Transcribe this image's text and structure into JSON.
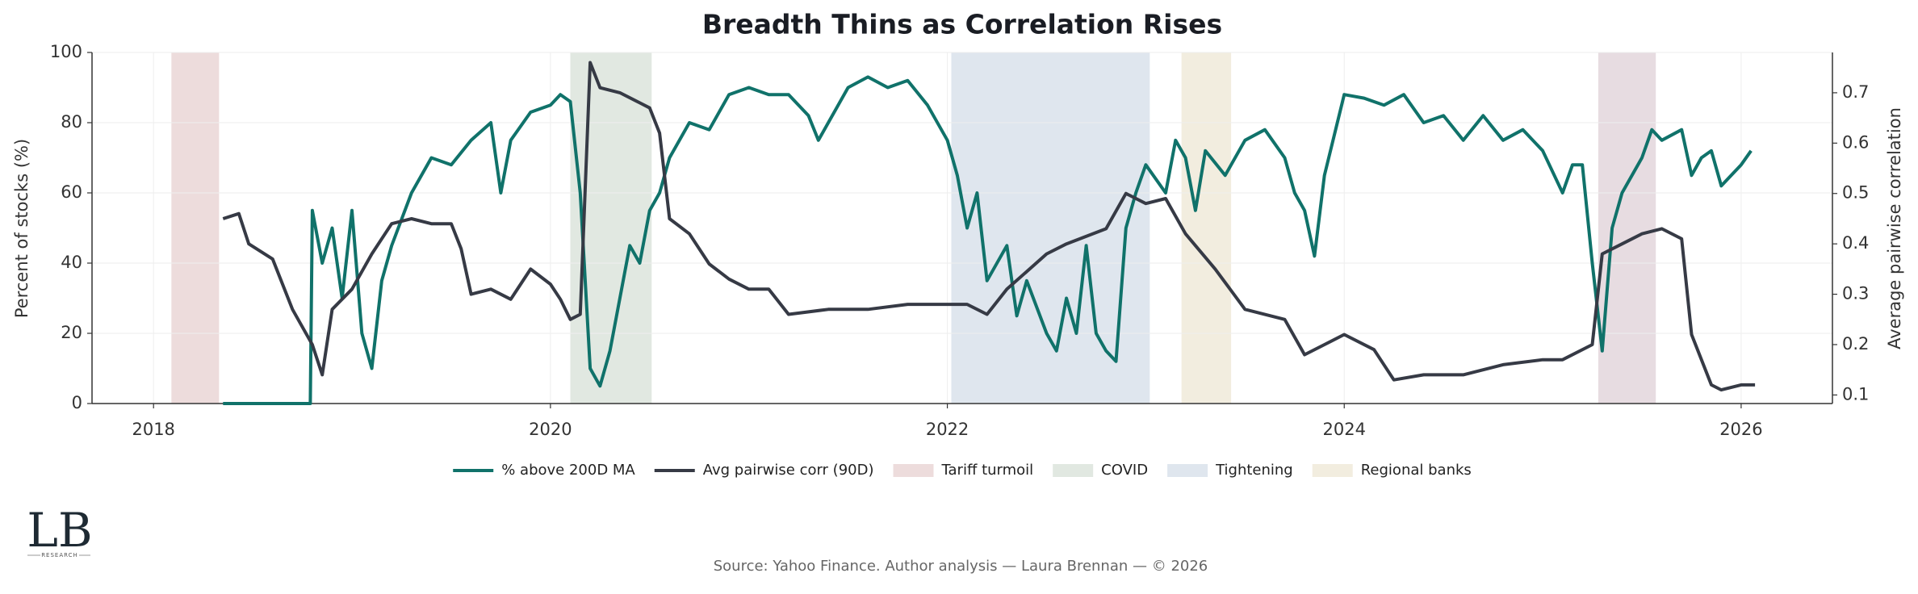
{
  "chart_data": {
    "type": "line",
    "title": "Breadth Thins as Correlation Rises",
    "y_label": "Percent of stocks (%)",
    "y2_label": "Average pairwise correlation",
    "source": "Source: Yahoo Finance. Author analysis — Laura Brennan — © 2026",
    "xlim": [
      2017.69,
      2026.46
    ],
    "xticks": [
      2018,
      2020,
      2022,
      2024,
      2026
    ],
    "ylim": [
      0,
      100
    ],
    "yticks": [
      0,
      20,
      40,
      60,
      80,
      100
    ],
    "y2lim": [
      0.083,
      0.78
    ],
    "y2ticks": [
      0.1,
      0.2,
      0.3,
      0.4,
      0.5,
      0.6,
      0.7
    ],
    "grid": true,
    "legend": "bottom",
    "spans": [
      {
        "name": "Tariff turmoil",
        "start": 2018.09,
        "end": 2018.33,
        "color": "#eddcdc"
      },
      {
        "name": "COVID",
        "start": 2020.1,
        "end": 2020.51,
        "color": "#e1e8e1"
      },
      {
        "name": "Tightening",
        "start": 2022.02,
        "end": 2023.02,
        "color": "#dfe6ee"
      },
      {
        "name": "Regional banks",
        "start": 2023.18,
        "end": 2023.43,
        "color": "#f2eddf"
      },
      {
        "name": "Tariff turmoil",
        "start": 2025.28,
        "end": 2025.57,
        "color": "#e7dce1"
      }
    ],
    "series": [
      {
        "name": "% above 200D MA",
        "color": "#10726a",
        "x": [
          2018.35,
          2018.79,
          2018.8,
          2018.85,
          2018.9,
          2018.95,
          2019.0,
          2019.05,
          2019.1,
          2019.15,
          2019.2,
          2019.3,
          2019.4,
          2019.5,
          2019.6,
          2019.7,
          2019.75,
          2019.8,
          2019.9,
          2020.0,
          2020.05,
          2020.1,
          2020.15,
          2020.2,
          2020.25,
          2020.3,
          2020.35,
          2020.4,
          2020.45,
          2020.5,
          2020.55,
          2020.6,
          2020.7,
          2020.8,
          2020.9,
          2021.0,
          2021.1,
          2021.2,
          2021.3,
          2021.35,
          2021.4,
          2021.5,
          2021.6,
          2021.7,
          2021.8,
          2021.9,
          2022.0,
          2022.05,
          2022.1,
          2022.15,
          2022.2,
          2022.3,
          2022.35,
          2022.4,
          2022.5,
          2022.55,
          2022.6,
          2022.65,
          2022.7,
          2022.75,
          2022.8,
          2022.85,
          2022.9,
          2022.95,
          2023.0,
          2023.1,
          2023.15,
          2023.2,
          2023.25,
          2023.3,
          2023.4,
          2023.5,
          2023.6,
          2023.7,
          2023.75,
          2023.8,
          2023.85,
          2023.9,
          2024.0,
          2024.1,
          2024.2,
          2024.3,
          2024.4,
          2024.5,
          2024.6,
          2024.7,
          2024.8,
          2024.9,
          2025.0,
          2025.1,
          2025.15,
          2025.2,
          2025.25,
          2025.3,
          2025.35,
          2025.4,
          2025.5,
          2025.55,
          2025.6,
          2025.7,
          2025.75,
          2025.8,
          2025.85,
          2025.9,
          2026.0,
          2026.05
        ],
        "values": [
          0,
          0,
          55,
          40,
          50,
          30,
          55,
          20,
          10,
          35,
          45,
          60,
          70,
          68,
          75,
          80,
          60,
          75,
          83,
          85,
          88,
          86,
          60,
          10,
          5,
          15,
          30,
          45,
          40,
          55,
          60,
          70,
          80,
          78,
          88,
          90,
          88,
          88,
          82,
          75,
          80,
          90,
          93,
          90,
          92,
          85,
          75,
          65,
          50,
          60,
          35,
          45,
          25,
          35,
          20,
          15,
          30,
          20,
          45,
          20,
          15,
          12,
          50,
          60,
          68,
          60,
          75,
          70,
          55,
          72,
          65,
          75,
          78,
          70,
          60,
          55,
          42,
          65,
          88,
          87,
          85,
          88,
          80,
          82,
          75,
          82,
          75,
          78,
          72,
          60,
          68,
          68,
          40,
          15,
          50,
          60,
          70,
          78,
          75,
          78,
          65,
          70,
          72,
          62,
          68,
          72
        ]
      },
      {
        "name": "Avg pairwise corr (90D)",
        "color": "#363a45",
        "axis": "y2",
        "x": [
          2018.35,
          2018.43,
          2018.48,
          2018.6,
          2018.7,
          2018.8,
          2018.85,
          2018.9,
          2019.0,
          2019.1,
          2019.2,
          2019.3,
          2019.4,
          2019.5,
          2019.55,
          2019.6,
          2019.7,
          2019.8,
          2019.9,
          2020.0,
          2020.05,
          2020.1,
          2020.15,
          2020.2,
          2020.25,
          2020.35,
          2020.45,
          2020.5,
          2020.55,
          2020.6,
          2020.7,
          2020.8,
          2020.9,
          2021.0,
          2021.1,
          2021.2,
          2021.4,
          2021.6,
          2021.8,
          2022.0,
          2022.1,
          2022.2,
          2022.3,
          2022.5,
          2022.6,
          2022.8,
          2022.9,
          2023.0,
          2023.1,
          2023.2,
          2023.35,
          2023.5,
          2023.7,
          2023.8,
          2023.9,
          2024.0,
          2024.15,
          2024.25,
          2024.4,
          2024.6,
          2024.8,
          2025.0,
          2025.1,
          2025.25,
          2025.3,
          2025.4,
          2025.5,
          2025.6,
          2025.7,
          2025.75,
          2025.85,
          2025.9,
          2026.0,
          2026.07
        ],
        "values": [
          0.45,
          0.46,
          0.4,
          0.37,
          0.27,
          0.2,
          0.14,
          0.27,
          0.31,
          0.38,
          0.44,
          0.45,
          0.44,
          0.44,
          0.39,
          0.3,
          0.31,
          0.29,
          0.35,
          0.32,
          0.29,
          0.25,
          0.26,
          0.76,
          0.71,
          0.7,
          0.68,
          0.67,
          0.62,
          0.45,
          0.42,
          0.36,
          0.33,
          0.31,
          0.31,
          0.26,
          0.27,
          0.27,
          0.28,
          0.28,
          0.28,
          0.26,
          0.31,
          0.38,
          0.4,
          0.43,
          0.5,
          0.48,
          0.49,
          0.42,
          0.35,
          0.27,
          0.25,
          0.18,
          0.2,
          0.22,
          0.19,
          0.13,
          0.14,
          0.14,
          0.16,
          0.17,
          0.17,
          0.2,
          0.38,
          0.4,
          0.42,
          0.43,
          0.41,
          0.22,
          0.12,
          0.11,
          0.12,
          0.12
        ]
      }
    ]
  },
  "logo": {
    "mark": "LB",
    "sub": "RESEARCH"
  }
}
